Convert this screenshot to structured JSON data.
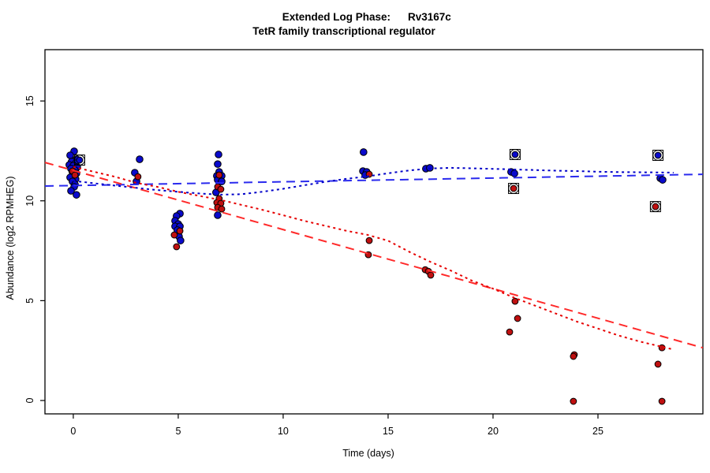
{
  "header": {
    "title_prefix": "Extended Log Phase:",
    "title_gene": "Rv3167c",
    "subtitle": "TetR family transcriptional regulator"
  },
  "chart_data": {
    "type": "scatter",
    "title": "Extended Log Phase:      Rv3167c",
    "subtitle": "TetR family transcriptional regulator",
    "xlabel": "Time  (days)",
    "ylabel": "Abundance  (log2 RPMHEG)",
    "xlim": [
      -1.35,
      30.0
    ],
    "ylim": [
      -0.67,
      17.57
    ],
    "x_ticks": [
      0,
      5,
      10,
      15,
      20,
      25
    ],
    "y_ticks": [
      0,
      5,
      10,
      15
    ],
    "grid": false,
    "legend": "none",
    "colors": {
      "blue_point_fill": "#0A0ACC",
      "red_point_fill": "#C01010",
      "point_outline": "#000000",
      "blue_dashed_line": "#2A2AEE",
      "blue_dotted_line": "#0000C8",
      "red_dashed_line": "#FF2A2A",
      "red_dotted_line": "#E60000",
      "ring_outline": "#000000"
    },
    "series": [
      {
        "name": "blue-replicate-points",
        "color_key": "blue_point_fill",
        "points": [
          [
            0.04,
            12.48
          ],
          [
            -0.15,
            12.28
          ],
          [
            0.15,
            12.08
          ],
          [
            -0.08,
            11.96
          ],
          [
            0.11,
            11.88
          ],
          [
            -0.19,
            11.8
          ],
          [
            0.0,
            11.76
          ],
          [
            0.19,
            11.69
          ],
          [
            -0.11,
            11.61
          ],
          [
            0.08,
            11.53
          ],
          [
            -0.04,
            11.45
          ],
          [
            0.15,
            11.37
          ],
          [
            0.04,
            11.25
          ],
          [
            -0.15,
            11.17
          ],
          [
            0.11,
            11.09
          ],
          [
            -0.04,
            10.97
          ],
          [
            0.08,
            10.82
          ],
          [
            0.04,
            10.7
          ],
          [
            -0.11,
            10.5
          ],
          [
            0.15,
            10.3
          ],
          [
            3.16,
            12.08
          ],
          [
            2.93,
            11.41
          ],
          [
            3.01,
            10.97
          ],
          [
            5.08,
            9.36
          ],
          [
            4.92,
            9.24
          ],
          [
            4.85,
            9.0
          ],
          [
            5.0,
            8.84
          ],
          [
            4.85,
            8.72
          ],
          [
            5.08,
            8.72
          ],
          [
            4.96,
            8.53
          ],
          [
            5.04,
            8.21
          ],
          [
            5.11,
            8.01
          ],
          [
            6.92,
            12.32
          ],
          [
            6.88,
            11.84
          ],
          [
            6.95,
            11.45
          ],
          [
            6.84,
            11.25
          ],
          [
            7.07,
            11.25
          ],
          [
            6.88,
            11.05
          ],
          [
            7.07,
            10.97
          ],
          [
            6.8,
            10.42
          ],
          [
            6.88,
            9.28
          ],
          [
            13.83,
            12.44
          ],
          [
            13.8,
            11.49
          ],
          [
            13.98,
            11.45
          ],
          [
            13.91,
            11.29
          ],
          [
            16.8,
            11.61
          ],
          [
            16.99,
            11.65
          ],
          [
            20.86,
            11.45
          ],
          [
            21.02,
            11.37
          ],
          [
            27.97,
            11.13
          ],
          [
            28.08,
            11.05
          ]
        ]
      },
      {
        "name": "red-replicate-points",
        "color_key": "red_point_fill",
        "points": [
          [
            -0.04,
            11.49
          ],
          [
            0.08,
            11.29
          ],
          [
            3.08,
            11.21
          ],
          [
            5.08,
            8.49
          ],
          [
            4.81,
            8.29
          ],
          [
            4.92,
            7.7
          ],
          [
            6.95,
            11.29
          ],
          [
            6.88,
            10.7
          ],
          [
            7.03,
            10.58
          ],
          [
            6.95,
            10.11
          ],
          [
            6.84,
            9.91
          ],
          [
            7.03,
            9.87
          ],
          [
            6.88,
            9.67
          ],
          [
            7.07,
            9.59
          ],
          [
            14.1,
            11.33
          ],
          [
            14.1,
            8.01
          ],
          [
            14.06,
            7.3
          ],
          [
            16.77,
            6.55
          ],
          [
            16.92,
            6.47
          ],
          [
            17.03,
            6.28
          ],
          [
            21.05,
            4.97
          ],
          [
            21.17,
            4.11
          ],
          [
            20.79,
            3.43
          ],
          [
            23.87,
            2.29
          ],
          [
            23.83,
            2.21
          ],
          [
            23.83,
            -0.04
          ],
          [
            28.05,
            2.64
          ],
          [
            27.86,
            1.82
          ],
          [
            28.05,
            -0.04
          ]
        ]
      }
    ],
    "circled_points": [
      {
        "x": 0.3,
        "y": 12.04,
        "color": "blue"
      },
      {
        "x": 21.05,
        "y": 12.32,
        "color": "blue"
      },
      {
        "x": 20.98,
        "y": 10.62,
        "color": "red"
      },
      {
        "x": 27.86,
        "y": 12.28,
        "color": "blue"
      },
      {
        "x": 27.74,
        "y": 9.71,
        "color": "red"
      }
    ],
    "trend_lines": [
      {
        "name": "blue-linear-fit",
        "style": "dashed",
        "color_key": "blue_dashed_line",
        "points": [
          [
            -1.35,
            10.74
          ],
          [
            30.0,
            11.33
          ]
        ]
      },
      {
        "name": "red-linear-fit",
        "style": "dashed",
        "color_key": "red_dashed_line",
        "points": [
          [
            -1.35,
            11.92
          ],
          [
            30.0,
            2.64
          ]
        ]
      },
      {
        "name": "blue-loess-smooth",
        "style": "dotted",
        "color_key": "blue_dotted_line",
        "points": [
          [
            0,
            11.0
          ],
          [
            1,
            10.88
          ],
          [
            2,
            10.76
          ],
          [
            3,
            10.65
          ],
          [
            4,
            10.54
          ],
          [
            5,
            10.45
          ],
          [
            6,
            10.37
          ],
          [
            7,
            10.31
          ],
          [
            8,
            10.33
          ],
          [
            9,
            10.45
          ],
          [
            10,
            10.6
          ],
          [
            11,
            10.78
          ],
          [
            12,
            10.95
          ],
          [
            13,
            11.1
          ],
          [
            14,
            11.22
          ],
          [
            15,
            11.38
          ],
          [
            16,
            11.52
          ],
          [
            17,
            11.62
          ],
          [
            18,
            11.65
          ],
          [
            19,
            11.63
          ],
          [
            20,
            11.6
          ],
          [
            21,
            11.57
          ],
          [
            22,
            11.54
          ],
          [
            23,
            11.51
          ],
          [
            24,
            11.49
          ],
          [
            25,
            11.46
          ],
          [
            26,
            11.44
          ],
          [
            27,
            11.43
          ],
          [
            28,
            11.42
          ],
          [
            28.6,
            11.41
          ]
        ]
      },
      {
        "name": "red-loess-smooth",
        "style": "dotted",
        "color_key": "red_dotted_line",
        "points": [
          [
            0,
            11.7
          ],
          [
            1,
            11.45
          ],
          [
            2,
            11.2
          ],
          [
            3,
            10.9
          ],
          [
            4,
            10.7
          ],
          [
            5,
            10.45
          ],
          [
            6,
            10.25
          ],
          [
            7,
            10.05
          ],
          [
            8,
            9.8
          ],
          [
            9,
            9.55
          ],
          [
            10,
            9.28
          ],
          [
            11,
            9.0
          ],
          [
            12,
            8.75
          ],
          [
            13,
            8.5
          ],
          [
            14,
            8.3
          ],
          [
            15,
            8.0
          ],
          [
            16,
            7.45
          ],
          [
            17,
            6.95
          ],
          [
            18,
            6.5
          ],
          [
            19,
            6.0
          ],
          [
            20,
            5.6
          ],
          [
            21,
            5.15
          ],
          [
            22,
            4.75
          ],
          [
            23,
            4.35
          ],
          [
            24,
            3.95
          ],
          [
            25,
            3.6
          ],
          [
            26,
            3.25
          ],
          [
            27,
            2.95
          ],
          [
            28,
            2.7
          ],
          [
            28.6,
            2.55
          ]
        ]
      }
    ]
  }
}
